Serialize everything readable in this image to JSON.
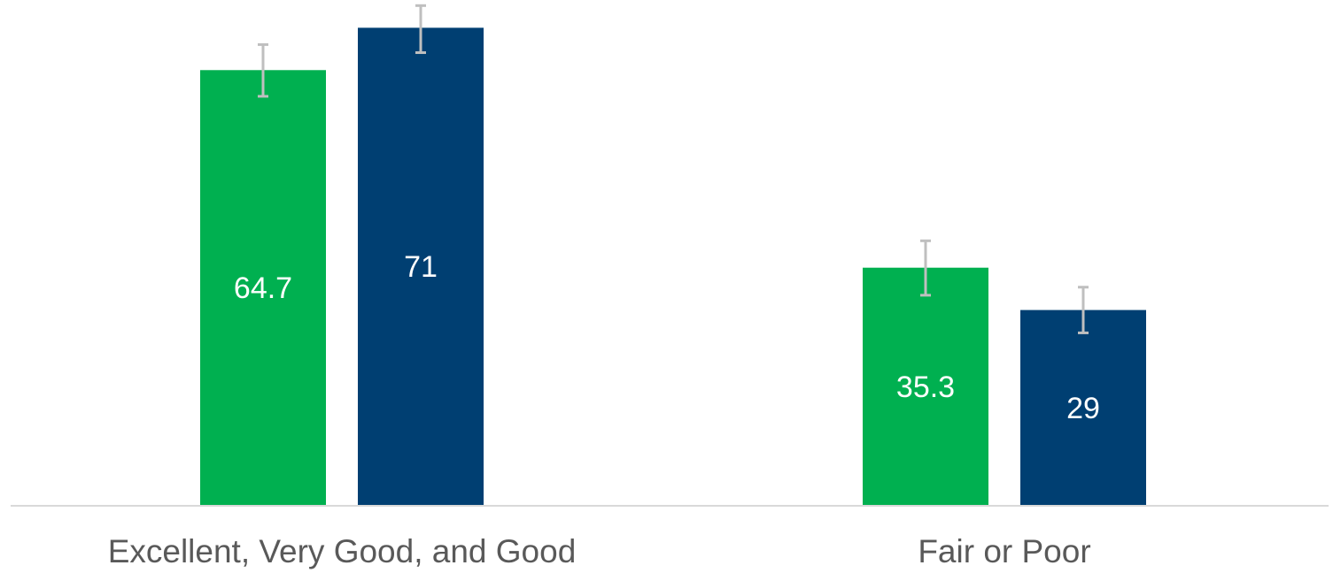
{
  "chart_data": {
    "type": "bar",
    "categories": [
      "Excellent, Very Good, and Good",
      "Fair or Poor"
    ],
    "series": [
      {
        "values": [
          64.7,
          35.3
        ],
        "error_low": [
          60.8,
          31.2
        ],
        "error_high": [
          68.5,
          39.3
        ],
        "color": "#00B050"
      },
      {
        "values": [
          71,
          29
        ],
        "error_low": [
          67.3,
          25.6
        ],
        "error_high": [
          74.3,
          32.4
        ],
        "color": "#003F72"
      }
    ],
    "title": "",
    "xlabel": "",
    "ylabel": "",
    "ylim": [
      0,
      75
    ],
    "grid": false,
    "legend": "none",
    "error_bar_color": "#BFBFBF",
    "axis_color": "#D9D9D9"
  }
}
